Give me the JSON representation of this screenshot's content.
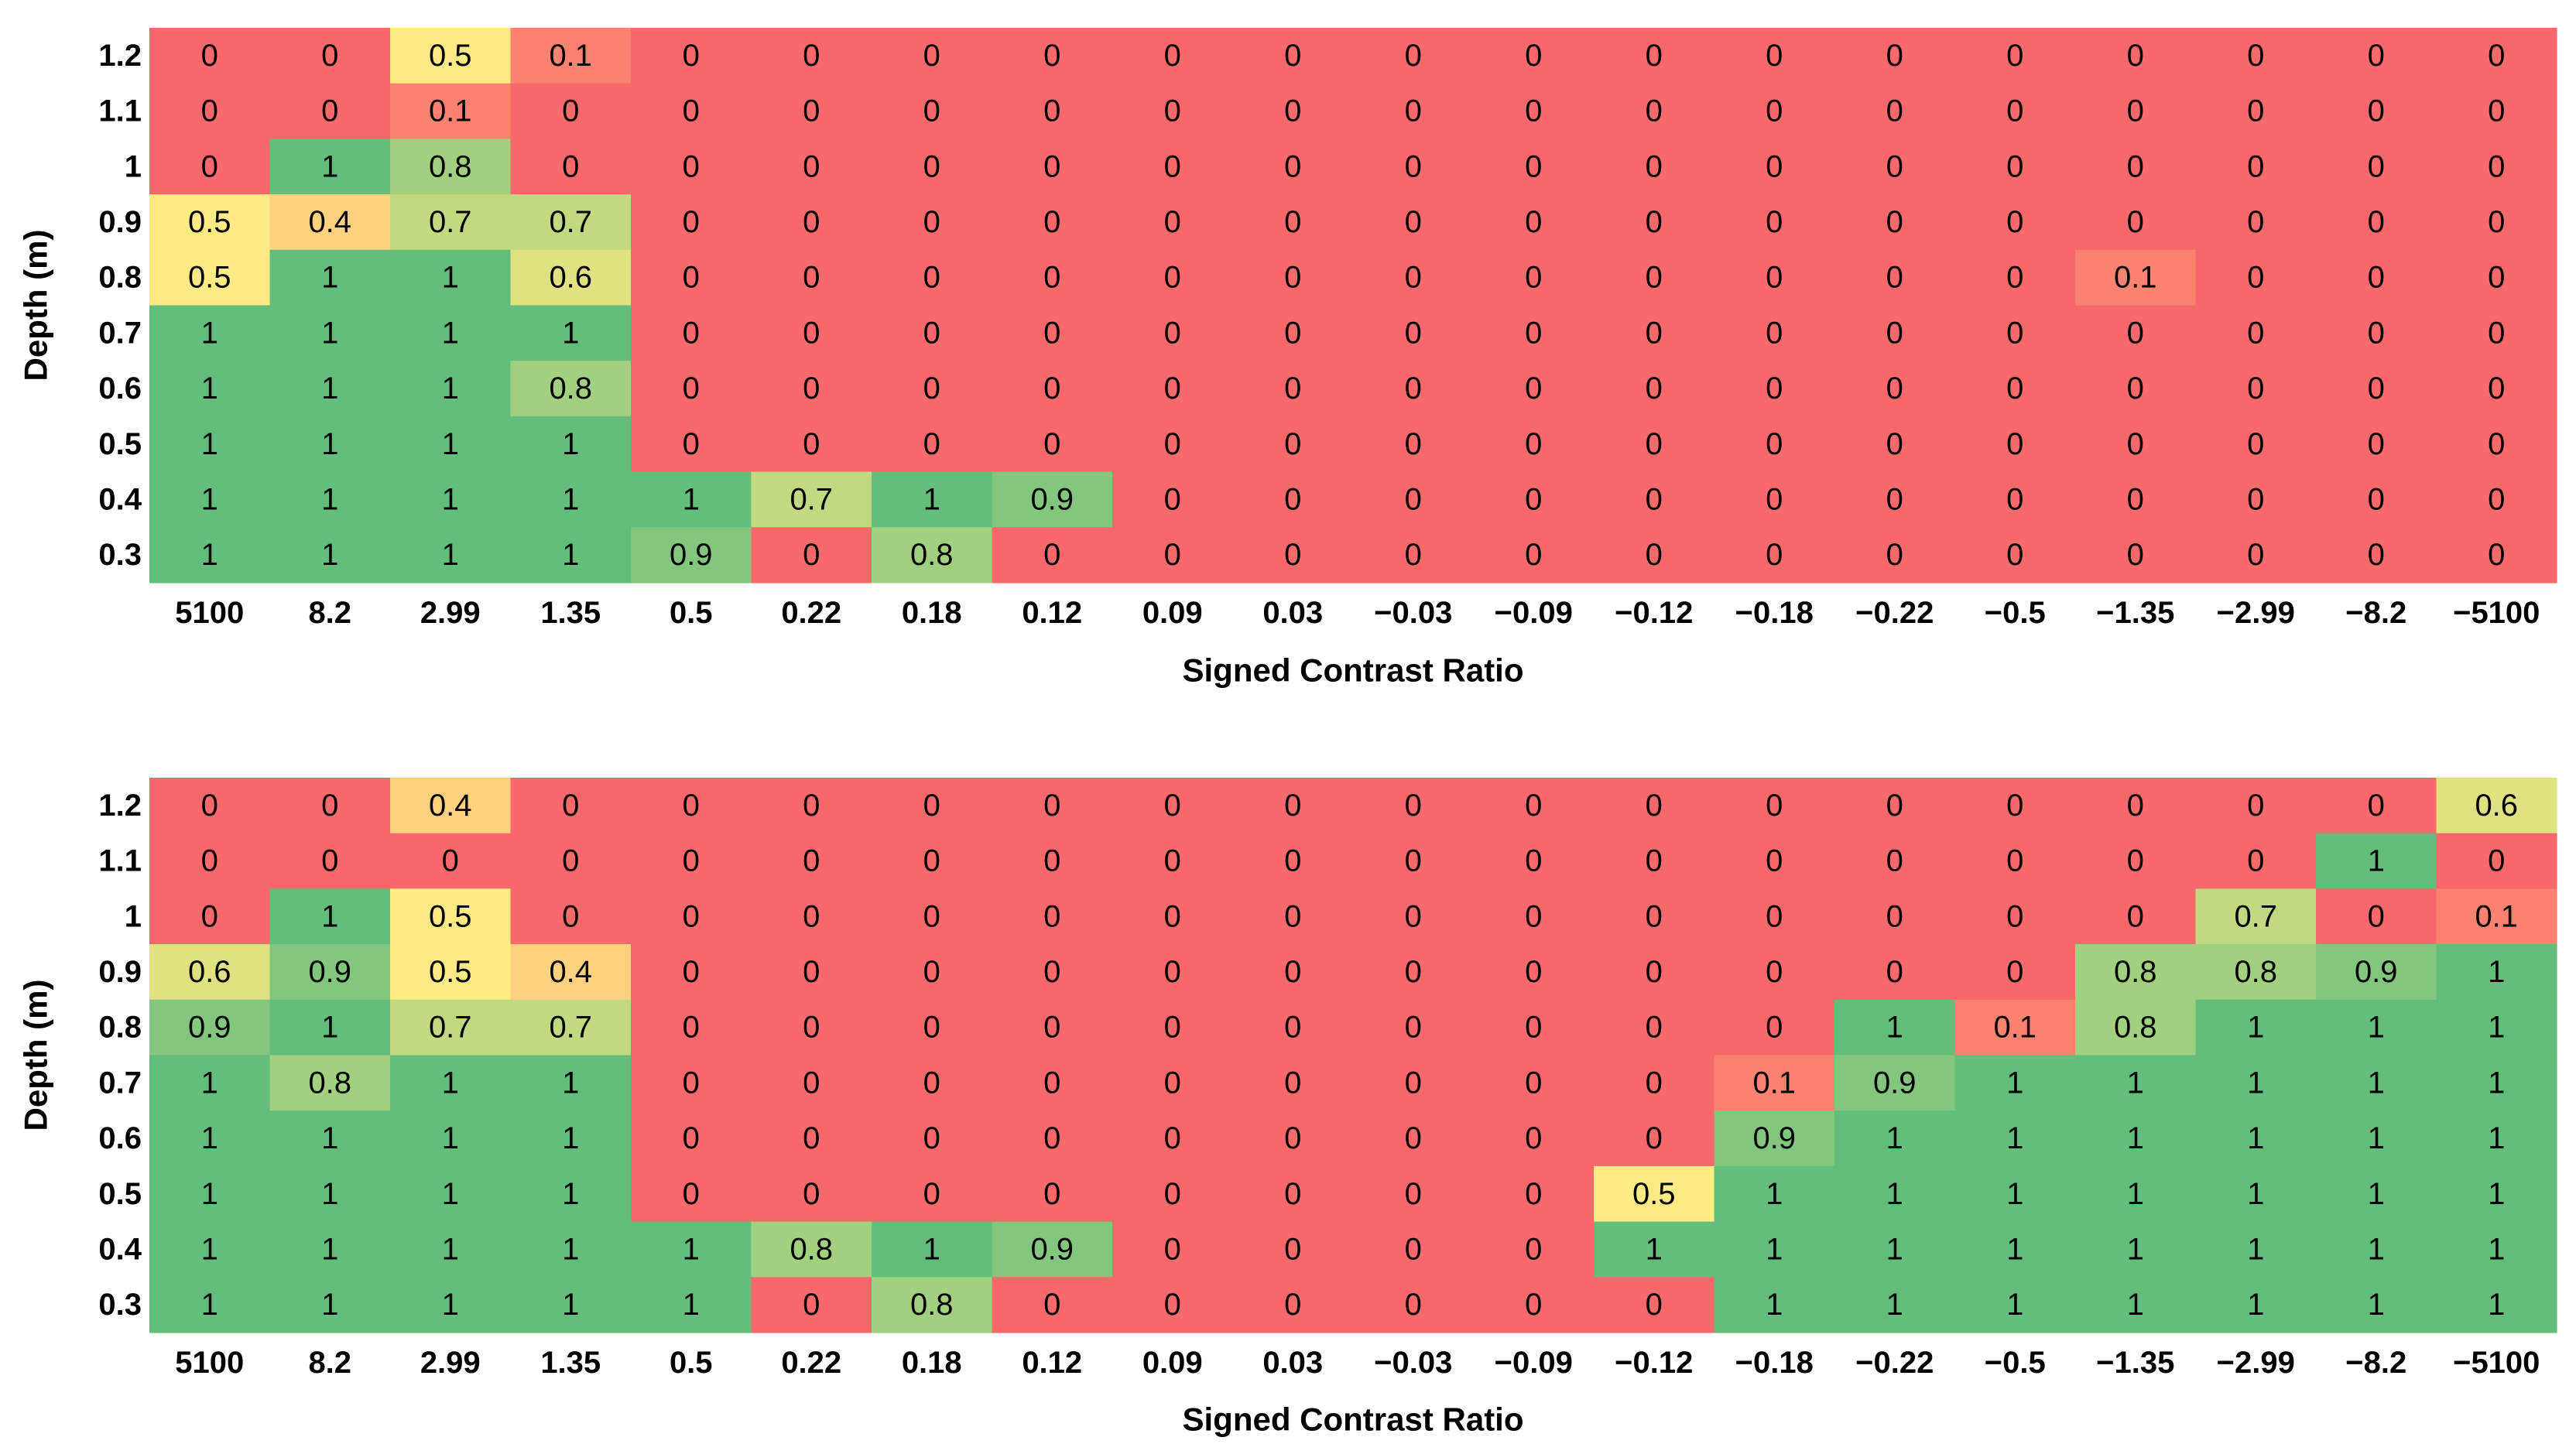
{
  "chart_data": [
    {
      "type": "heatmap",
      "title": "",
      "xlabel": "Signed Contrast Ratio",
      "ylabel": "Depth (m)",
      "x_categories": [
        "5100",
        "8.2",
        "2.99",
        "1.35",
        "0.5",
        "0.22",
        "0.18",
        "0.12",
        "0.09",
        "0.03",
        "−0.03",
        "−0.09",
        "−0.12",
        "−0.18",
        "−0.22",
        "−0.5",
        "−1.35",
        "−2.99",
        "−8.2",
        "−5100"
      ],
      "y_categories": [
        "1.2",
        "1.1",
        "1",
        "0.9",
        "0.8",
        "0.7",
        "0.6",
        "0.5",
        "0.4",
        "0.3"
      ],
      "values": [
        [
          0,
          0,
          0.5,
          0.1,
          0,
          0,
          0,
          0,
          0,
          0,
          0,
          0,
          0,
          0,
          0,
          0,
          0,
          0,
          0,
          0
        ],
        [
          0,
          0,
          0.1,
          0,
          0,
          0,
          0,
          0,
          0,
          0,
          0,
          0,
          0,
          0,
          0,
          0,
          0,
          0,
          0,
          0
        ],
        [
          0,
          1,
          0.8,
          0,
          0,
          0,
          0,
          0,
          0,
          0,
          0,
          0,
          0,
          0,
          0,
          0,
          0,
          0,
          0,
          0
        ],
        [
          0.5,
          0.4,
          0.7,
          0.7,
          0,
          0,
          0,
          0,
          0,
          0,
          0,
          0,
          0,
          0,
          0,
          0,
          0,
          0,
          0,
          0
        ],
        [
          0.5,
          1,
          1,
          0.6,
          0,
          0,
          0,
          0,
          0,
          0,
          0,
          0,
          0,
          0,
          0,
          0,
          0.1,
          0,
          0,
          0
        ],
        [
          1,
          1,
          1,
          1,
          0,
          0,
          0,
          0,
          0,
          0,
          0,
          0,
          0,
          0,
          0,
          0,
          0,
          0,
          0,
          0
        ],
        [
          1,
          1,
          1,
          0.8,
          0,
          0,
          0,
          0,
          0,
          0,
          0,
          0,
          0,
          0,
          0,
          0,
          0,
          0,
          0,
          0
        ],
        [
          1,
          1,
          1,
          1,
          0,
          0,
          0,
          0,
          0,
          0,
          0,
          0,
          0,
          0,
          0,
          0,
          0,
          0,
          0,
          0
        ],
        [
          1,
          1,
          1,
          1,
          1,
          0.7,
          1,
          0.9,
          0,
          0,
          0,
          0,
          0,
          0,
          0,
          0,
          0,
          0,
          0,
          0
        ],
        [
          1,
          1,
          1,
          1,
          0.9,
          0,
          0.8,
          0,
          0,
          0,
          0,
          0,
          0,
          0,
          0,
          0,
          0,
          0,
          0,
          0
        ]
      ],
      "color_scale": {
        "low": "#f8696b",
        "mid": "#ffeb84",
        "high": "#63be7b"
      }
    },
    {
      "type": "heatmap",
      "title": "",
      "xlabel": "Signed Contrast Ratio",
      "ylabel": "Depth (m)",
      "x_categories": [
        "5100",
        "8.2",
        "2.99",
        "1.35",
        "0.5",
        "0.22",
        "0.18",
        "0.12",
        "0.09",
        "0.03",
        "−0.03",
        "−0.09",
        "−0.12",
        "−0.18",
        "−0.22",
        "−0.5",
        "−1.35",
        "−2.99",
        "−8.2",
        "−5100"
      ],
      "y_categories": [
        "1.2",
        "1.1",
        "1",
        "0.9",
        "0.8",
        "0.7",
        "0.6",
        "0.5",
        "0.4",
        "0.3"
      ],
      "values": [
        [
          0,
          0,
          0.4,
          0,
          0,
          0,
          0,
          0,
          0,
          0,
          0,
          0,
          0,
          0,
          0,
          0,
          0,
          0,
          0,
          0.6
        ],
        [
          0,
          0,
          0,
          0,
          0,
          0,
          0,
          0,
          0,
          0,
          0,
          0,
          0,
          0,
          0,
          0,
          0,
          0,
          1,
          0
        ],
        [
          0,
          1,
          0.5,
          0,
          0,
          0,
          0,
          0,
          0,
          0,
          0,
          0,
          0,
          0,
          0,
          0,
          0,
          0.7,
          0,
          0.1
        ],
        [
          0.6,
          0.9,
          0.5,
          0.4,
          0,
          0,
          0,
          0,
          0,
          0,
          0,
          0,
          0,
          0,
          0,
          0,
          0.8,
          0.8,
          0.9,
          1
        ],
        [
          0.9,
          1,
          0.7,
          0.7,
          0,
          0,
          0,
          0,
          0,
          0,
          0,
          0,
          0,
          0,
          1,
          0.1,
          0.8,
          1,
          1,
          1
        ],
        [
          1,
          0.8,
          1,
          1,
          0,
          0,
          0,
          0,
          0,
          0,
          0,
          0,
          0,
          0.1,
          0.9,
          1,
          1,
          1,
          1,
          1
        ],
        [
          1,
          1,
          1,
          1,
          0,
          0,
          0,
          0,
          0,
          0,
          0,
          0,
          0,
          0.9,
          1,
          1,
          1,
          1,
          1,
          1
        ],
        [
          1,
          1,
          1,
          1,
          0,
          0,
          0,
          0,
          0,
          0,
          0,
          0,
          0.5,
          1,
          1,
          1,
          1,
          1,
          1,
          1
        ],
        [
          1,
          1,
          1,
          1,
          1,
          0.8,
          1,
          0.9,
          0,
          0,
          0,
          0,
          1,
          1,
          1,
          1,
          1,
          1,
          1,
          1
        ],
        [
          1,
          1,
          1,
          1,
          1,
          0,
          0.8,
          0,
          0,
          0,
          0,
          0,
          0,
          1,
          1,
          1,
          1,
          1,
          1,
          1
        ]
      ],
      "color_scale": {
        "low": "#f8696b",
        "mid": "#ffeb84",
        "high": "#63be7b"
      }
    }
  ]
}
